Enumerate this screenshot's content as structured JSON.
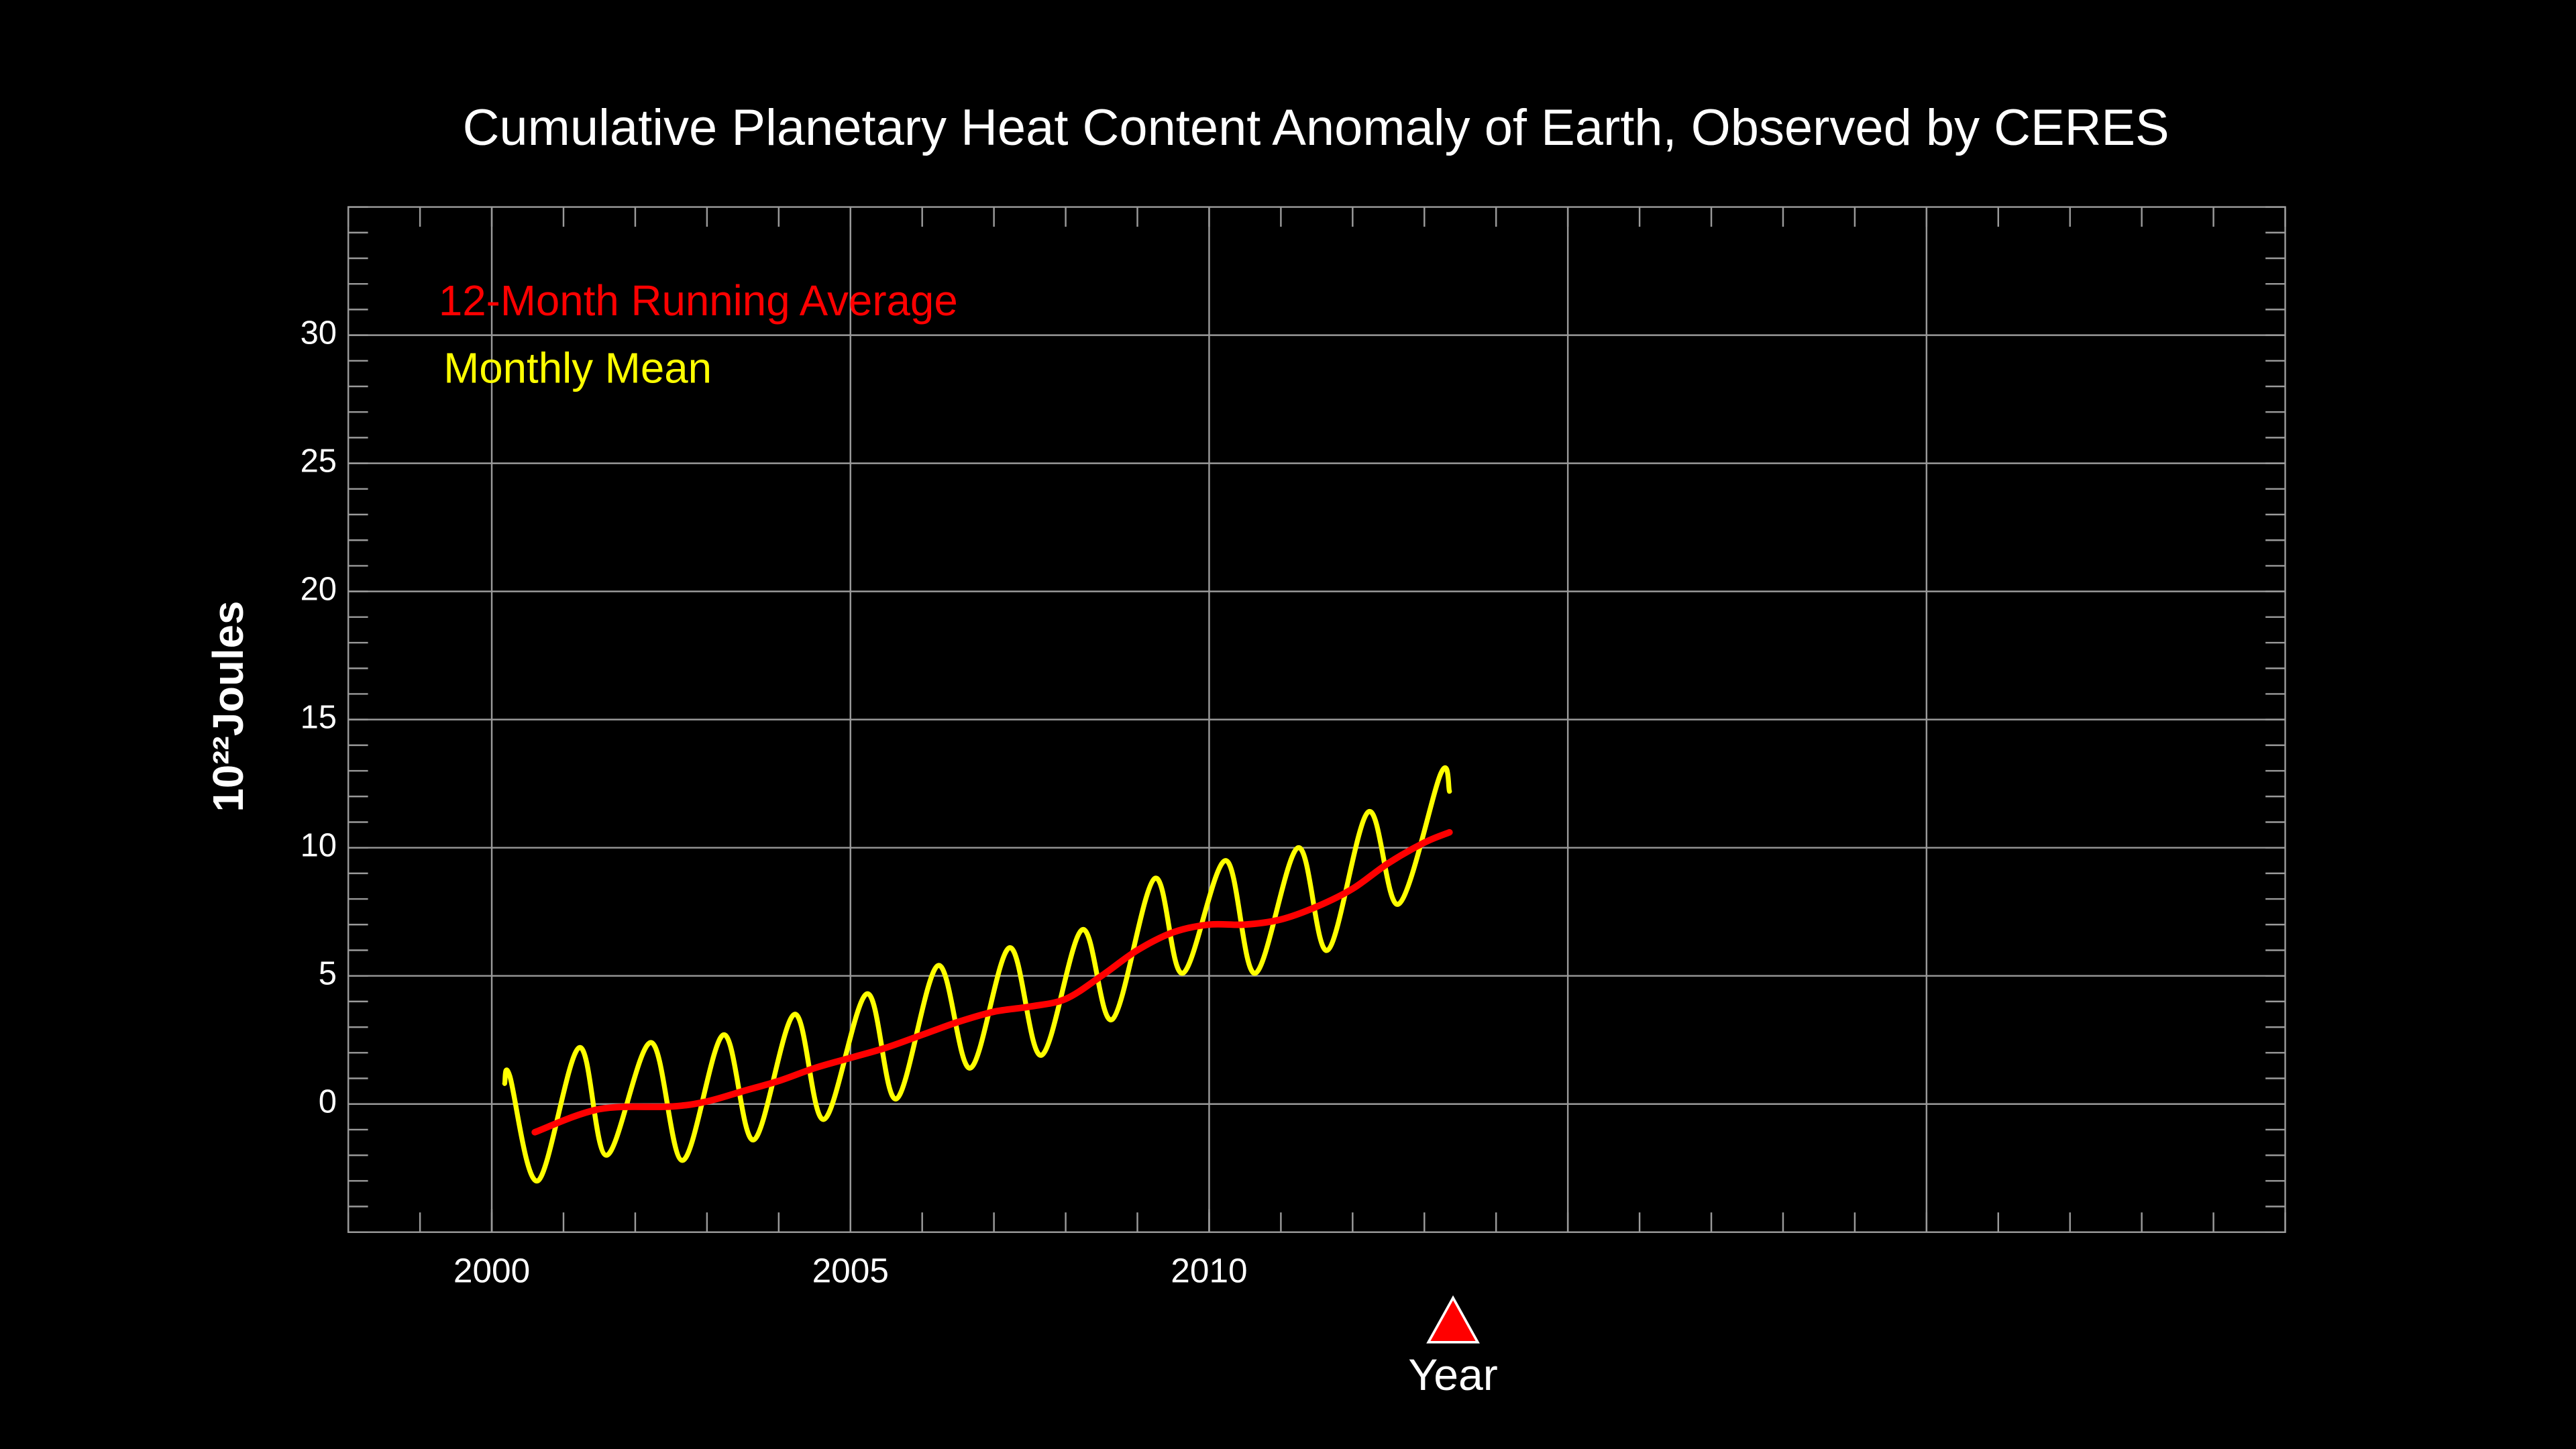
{
  "chart_data": {
    "type": "line",
    "title": "Cumulative Planetary Heat Content Anomaly of Earth, Observed by CERES",
    "y_label": "10²²Joules",
    "x_label": "Year",
    "xlim": [
      1998,
      2025
    ],
    "xticks": [
      2000,
      2005,
      2010
    ],
    "xgrid": [
      2000,
      2005,
      2010,
      2015,
      2020
    ],
    "ylim": [
      -5,
      35
    ],
    "yticks": [
      0,
      5,
      10,
      15,
      20,
      25,
      30
    ],
    "grid": true,
    "background": "#000000",
    "marker_x": 2013.4,
    "marker_color": "#ff0000",
    "series": [
      {
        "name": "12-Month Running Average",
        "color": "#ff0000",
        "x": [
          2000.6,
          2001.5,
          2002.5,
          2003.0,
          2003.5,
          2004.0,
          2004.5,
          2005.0,
          2005.5,
          2006.0,
          2006.5,
          2007.0,
          2007.5,
          2008.0,
          2008.5,
          2009.0,
          2009.5,
          2010.0,
          2010.5,
          2011.0,
          2011.5,
          2012.0,
          2012.5,
          2013.0,
          2013.35
        ],
        "values": [
          -1.1,
          -0.2,
          -0.1,
          0.1,
          0.5,
          0.9,
          1.4,
          1.8,
          2.2,
          2.7,
          3.2,
          3.6,
          3.8,
          4.1,
          5.0,
          6.0,
          6.7,
          7.0,
          7.0,
          7.2,
          7.7,
          8.4,
          9.4,
          10.2,
          10.6
        ]
      },
      {
        "name": "Monthly Mean",
        "color": "#ffff00",
        "x": [
          2000.18,
          2000.25,
          2000.64,
          2001.22,
          2001.6,
          2002.22,
          2002.66,
          2003.23,
          2003.65,
          2004.22,
          2004.63,
          2005.23,
          2005.64,
          2006.22,
          2006.67,
          2007.22,
          2007.66,
          2008.23,
          2008.65,
          2009.24,
          2009.63,
          2010.23,
          2010.64,
          2011.24,
          2011.65,
          2012.22,
          2012.64,
          2013.23,
          2013.35
        ],
        "values": [
          0.8,
          1.1,
          -3.0,
          2.2,
          -2.0,
          2.4,
          -2.2,
          2.7,
          -1.4,
          3.5,
          -0.6,
          4.3,
          0.2,
          5.4,
          1.4,
          6.1,
          1.9,
          6.8,
          3.3,
          8.8,
          5.1,
          9.5,
          5.1,
          10.0,
          6.0,
          11.4,
          7.8,
          12.9,
          12.2
        ]
      }
    ]
  }
}
